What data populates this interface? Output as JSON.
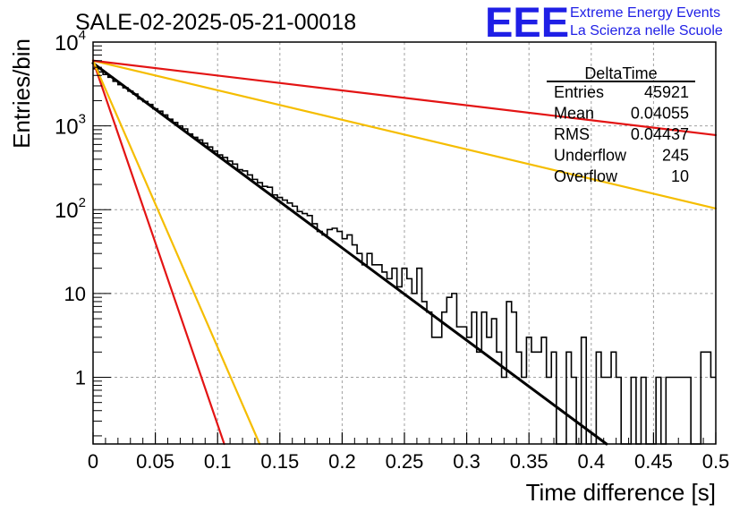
{
  "run_title": "SALE-02-2025-05-21-00018",
  "logo": {
    "letters": "EEE",
    "line1": "Extreme Energy Events",
    "line2": "La Scienza nelle Scuole",
    "color": "#1f1fe6"
  },
  "stats_box": {
    "title": "DeltaTime",
    "rows": [
      {
        "label": "Entries",
        "value": "45921"
      },
      {
        "label": "Mean",
        "value": "0.04055"
      },
      {
        "label": "RMS",
        "value": "0.04437"
      },
      {
        "label": "Underflow",
        "value": "245"
      },
      {
        "label": "Overflow",
        "value": "10"
      }
    ]
  },
  "chart_data": {
    "type": "histogram",
    "title": "SALE-02-2025-05-21-00018",
    "xlabel": "Time difference [s]",
    "ylabel": "Entries/bin",
    "xlim": [
      0,
      0.5
    ],
    "ylim": [
      0.16,
      10000
    ],
    "yscale": "log",
    "grid": true,
    "x_ticks": [
      "0",
      "0.05",
      "0.1",
      "0.15",
      "0.2",
      "0.25",
      "0.3",
      "0.35",
      "0.4",
      "0.45",
      "0.5"
    ],
    "y_ticks": [
      {
        "value": 1,
        "label": "1"
      },
      {
        "value": 10,
        "label": "10"
      },
      {
        "value": 100,
        "base": "10",
        "exp": "2"
      },
      {
        "value": 1000,
        "base": "10",
        "exp": "3"
      },
      {
        "value": 10000,
        "base": "10",
        "exp": "4"
      }
    ],
    "bin_width": 0.004,
    "histogram_counts": [
      4800,
      4400,
      4100,
      3800,
      3400,
      3100,
      2850,
      2600,
      2400,
      2100,
      1950,
      1800,
      1600,
      1500,
      1350,
      1200,
      1100,
      1000,
      920,
      800,
      730,
      680,
      620,
      560,
      500,
      450,
      420,
      380,
      350,
      300,
      290,
      260,
      230,
      210,
      190,
      185,
      150,
      140,
      130,
      120,
      110,
      95,
      90,
      85,
      68,
      55,
      50,
      58,
      60,
      55,
      45,
      50,
      38,
      30,
      22,
      30,
      22,
      22,
      18,
      15,
      20,
      12,
      20,
      15,
      10,
      20,
      8,
      6,
      3,
      3,
      6,
      9,
      10,
      4,
      4,
      3,
      6,
      2,
      6,
      3,
      5,
      2,
      1,
      8,
      6,
      2,
      1,
      3,
      2,
      2,
      3,
      1,
      2,
      0,
      0,
      2,
      1,
      0,
      3,
      0,
      0,
      2,
      1,
      1,
      2,
      1,
      0,
      0,
      1,
      0,
      1,
      0,
      0,
      1,
      0,
      1,
      1,
      1,
      1,
      1,
      0,
      0,
      2,
      2,
      1
    ],
    "fit_curves": [
      {
        "name": "fit",
        "color": "#000000",
        "amplitude": 5600,
        "tau": 0.0394
      },
      {
        "name": "red-steep",
        "color": "#e31414",
        "amplitude": 6000,
        "tau": 0.01
      },
      {
        "name": "orange-steep",
        "color": "#f5bd00",
        "amplitude": 6000,
        "tau": 0.0127
      },
      {
        "name": "orange-slow",
        "color": "#f5bd00",
        "amplitude": 6000,
        "tau": 0.1231
      },
      {
        "name": "red-slow",
        "color": "#e31414",
        "amplitude": 6000,
        "tau": 0.2445
      }
    ]
  }
}
